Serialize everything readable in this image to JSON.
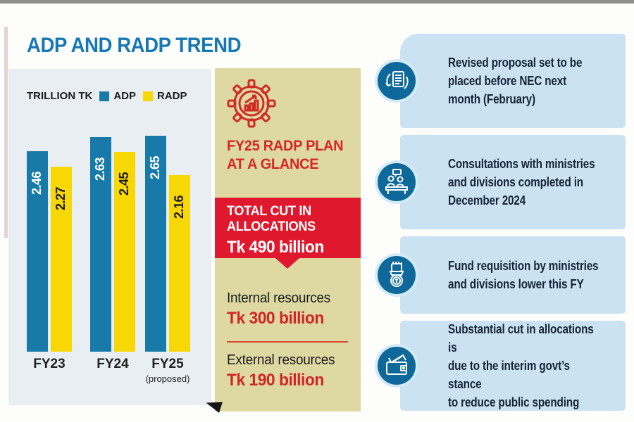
{
  "header": {
    "title": "ADP AND RADP TREND"
  },
  "chart_data": {
    "type": "bar",
    "title": "ADP AND RADP TREND",
    "unit_label": "TRILLION TK",
    "categories": [
      "FY23",
      "FY24",
      "FY25"
    ],
    "category_notes": [
      "",
      "",
      "(proposed)"
    ],
    "series": [
      {
        "name": "ADP",
        "color": "#187aa9",
        "value_color": "#ffffff",
        "values": [
          2.46,
          2.63,
          2.65
        ]
      },
      {
        "name": "RADP",
        "color": "#f7d704",
        "value_color": "#1c1c1c",
        "values": [
          2.27,
          2.45,
          2.16
        ]
      }
    ],
    "ylim": [
      0,
      2.8
    ],
    "grid": false,
    "legend_position": "top",
    "value_labels_rotated": true
  },
  "mid_panel": {
    "icon": "gear-chart-icon",
    "heading": "FY25 RADP PLAN\nAT A GLANCE",
    "highlight": {
      "label": "TOTAL CUT IN\nALLOCATIONS",
      "value": "Tk 490 billion"
    },
    "items": [
      {
        "label": "Internal resources",
        "value": "Tk 300 billion"
      },
      {
        "label": "External resources",
        "value": "Tk 190 billion"
      }
    ]
  },
  "callouts": [
    {
      "icon": "document-refresh-icon",
      "text": "Revised proposal set to be\nplaced before NEC next\nmonth (February)"
    },
    {
      "icon": "meeting-icon",
      "text": "Consultations with ministries\nand divisions completed in\nDecember 2024"
    },
    {
      "icon": "fund-request-icon",
      "text": "Fund requisition by ministries\nand divisions lower this FY"
    },
    {
      "icon": "wallet-icon",
      "text": "Substantial cut in allocations is\ndue to the interim govt’s stance\nto reduce public spending"
    }
  ],
  "colors": {
    "title_blue": "#1678b5",
    "adp_blue": "#187aa9",
    "radp_yellow": "#f7d704",
    "chart_panel_bg": "#e9eef3",
    "mid_panel_bg": "#ded9a2",
    "highlight_red": "#e0182d",
    "accent_red": "#d32329",
    "callout_bg": "#cbe2f3",
    "icon_circle_blue": "#0e699a",
    "navy_text": "#16263a"
  }
}
